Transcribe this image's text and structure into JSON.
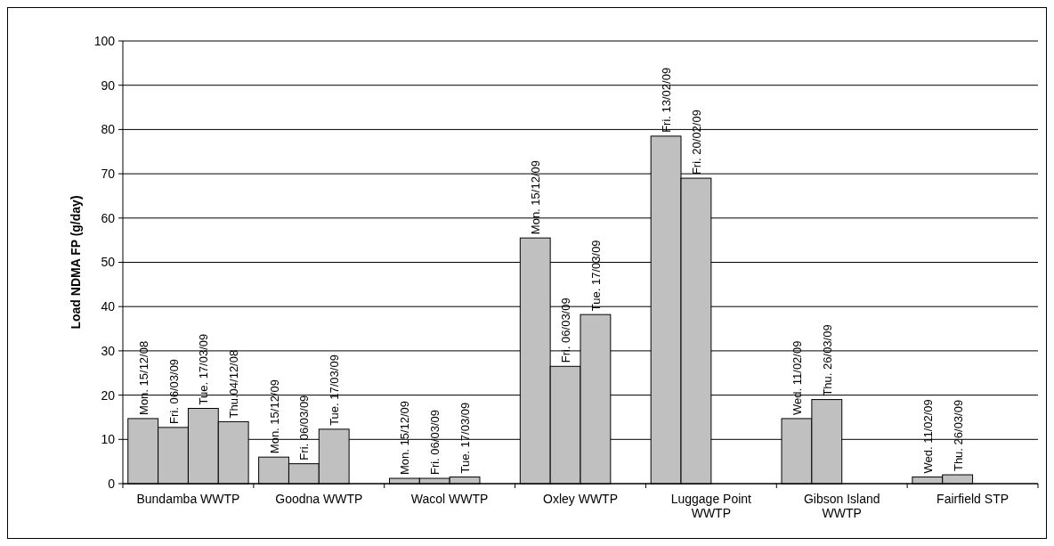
{
  "chart_data": {
    "type": "bar",
    "ylabel": "Load NDMA FP (g/day)",
    "categories": [
      "Bundamba WWTP",
      "Goodna WWTP",
      "Wacol WWTP",
      "Oxley WWTP",
      "Luggage Point WWTP",
      "Gibson Island WWTP",
      "Fairfield STP"
    ],
    "series": [
      {
        "color": "#c0c0c0",
        "values": [
          14.7,
          6,
          1.2,
          55.5,
          78.5,
          14.7,
          1.5
        ],
        "value_labels": [
          "Mon. 15/12/08",
          "Mon. 15/12/09",
          "Mon. 15/12/09",
          "Mon. 15/12/09",
          "Fri. 13/02/09",
          "Wed. 11/02/09",
          "Wed. 11/02/09"
        ]
      },
      {
        "color": "#c0c0c0",
        "values": [
          12.7,
          4.5,
          1.2,
          26.5,
          69,
          19,
          2
        ],
        "value_labels": [
          "Fri. 06/03/09",
          "Fri. 06/03/09",
          "Fri. 06/03/09",
          "Fri. 06/03/09",
          "Fri. 20/02/09",
          "Thu. 26/03/09",
          "Thu. 26/03/09"
        ]
      },
      {
        "color": "#c0c0c0",
        "values": [
          17,
          12.3,
          1.5,
          38.2,
          null,
          null,
          null
        ],
        "value_labels": [
          "Tue. 17/03/09",
          "Tue. 17/03/09",
          "Tue. 17/03/09",
          "Tue. 17/03/09",
          null,
          null,
          null
        ]
      },
      {
        "color": "#c0c0c0",
        "values": [
          14,
          null,
          null,
          null,
          null,
          null,
          null
        ],
        "value_labels": [
          "Thu.04/12/08",
          null,
          null,
          null,
          null,
          null,
          null
        ]
      }
    ],
    "ylim": [
      0,
      100
    ],
    "yticks": [
      0,
      10,
      20,
      30,
      40,
      50,
      60,
      70,
      80,
      90,
      100
    ],
    "grid": "y"
  }
}
